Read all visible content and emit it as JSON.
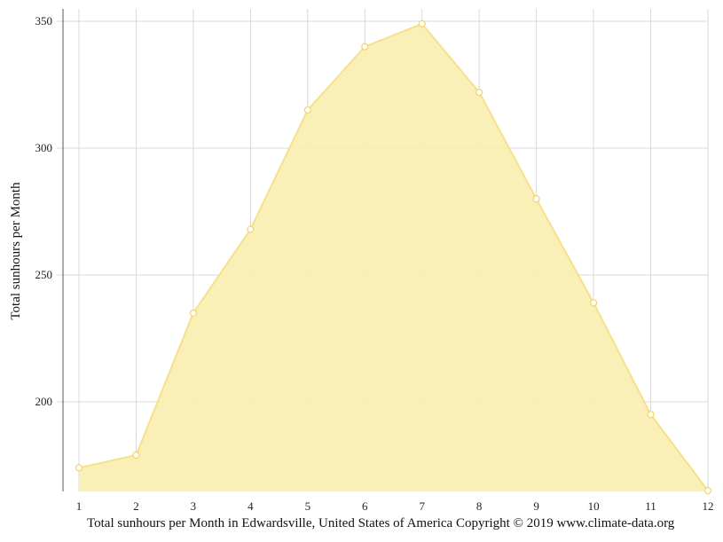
{
  "chart_data": {
    "type": "area",
    "x": [
      1,
      2,
      3,
      4,
      5,
      6,
      7,
      8,
      9,
      10,
      11,
      12
    ],
    "values": [
      174,
      179,
      235,
      268,
      315,
      340,
      349,
      322,
      280,
      239,
      195,
      165
    ],
    "ylabel": "Total sunhours per Month",
    "xlabel": "Total sunhours per Month in Edwardsville, United States of America Copyright © 2019 www.climate-data.org",
    "ylim": [
      165,
      355
    ],
    "yticks": [
      200,
      250,
      300,
      350
    ],
    "grid": true,
    "colors": {
      "fill": "#f9eeaf",
      "line": "#f6e08a",
      "marker_stroke": "#f2d466",
      "grid": "#d8d8d8"
    }
  }
}
